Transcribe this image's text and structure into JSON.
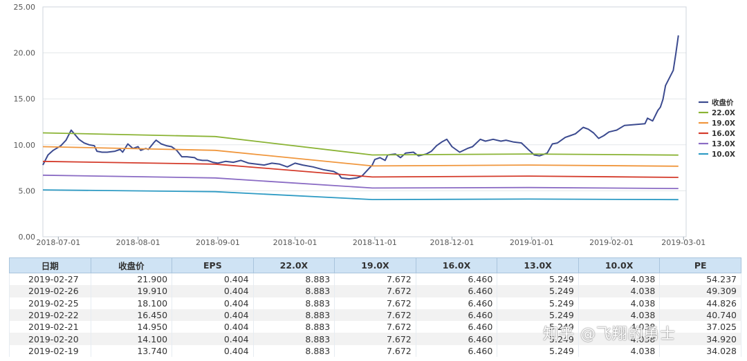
{
  "chart_data": {
    "type": "line",
    "title": "",
    "xlabel": "",
    "ylabel": "",
    "ylim": [
      0,
      25
    ],
    "yticks": [
      "0.00",
      "5.00",
      "10.00",
      "15.00",
      "20.00",
      "25.00"
    ],
    "x_range": [
      "2018-06-25",
      "2019-03-02"
    ],
    "xticks": [
      "2018-07-01",
      "2018-08-01",
      "2018-09-01",
      "2018-10-01",
      "2018-11-01",
      "2018-12-01",
      "2019-01-01",
      "2019-02-01",
      "2019-03-01"
    ],
    "grid": true,
    "legend_position": "right",
    "series": [
      {
        "name": "收盘价",
        "color": "#3b4a8f",
        "points": [
          [
            "2018-06-25",
            7.8
          ],
          [
            "2018-06-27",
            8.9
          ],
          [
            "2018-06-29",
            9.4
          ],
          [
            "2018-07-02",
            9.9
          ],
          [
            "2018-07-04",
            10.5
          ],
          [
            "2018-07-06",
            11.6
          ],
          [
            "2018-07-09",
            10.6
          ],
          [
            "2018-07-11",
            10.2
          ],
          [
            "2018-07-13",
            10.0
          ],
          [
            "2018-07-15",
            9.9
          ],
          [
            "2018-07-16",
            9.3
          ],
          [
            "2018-07-18",
            9.2
          ],
          [
            "2018-07-20",
            9.2
          ],
          [
            "2018-07-23",
            9.3
          ],
          [
            "2018-07-25",
            9.5
          ],
          [
            "2018-07-26",
            9.2
          ],
          [
            "2018-07-28",
            10.1
          ],
          [
            "2018-07-30",
            9.6
          ],
          [
            "2018-08-01",
            9.8
          ],
          [
            "2018-08-02",
            9.4
          ],
          [
            "2018-08-04",
            9.6
          ],
          [
            "2018-08-05",
            9.5
          ],
          [
            "2018-08-07",
            10.2
          ],
          [
            "2018-08-08",
            10.5
          ],
          [
            "2018-08-10",
            10.1
          ],
          [
            "2018-08-12",
            9.9
          ],
          [
            "2018-08-14",
            9.8
          ],
          [
            "2018-08-16",
            9.4
          ],
          [
            "2018-08-18",
            8.7
          ],
          [
            "2018-08-20",
            8.7
          ],
          [
            "2018-08-23",
            8.6
          ],
          [
            "2018-08-24",
            8.4
          ],
          [
            "2018-08-26",
            8.3
          ],
          [
            "2018-08-28",
            8.3
          ],
          [
            "2018-08-30",
            8.1
          ],
          [
            "2018-09-01",
            8.0
          ],
          [
            "2018-09-04",
            8.2
          ],
          [
            "2018-09-07",
            8.1
          ],
          [
            "2018-09-10",
            8.3
          ],
          [
            "2018-09-13",
            8.0
          ],
          [
            "2018-09-16",
            7.9
          ],
          [
            "2018-09-19",
            7.8
          ],
          [
            "2018-09-22",
            8.0
          ],
          [
            "2018-09-25",
            7.9
          ],
          [
            "2018-09-28",
            7.6
          ],
          [
            "2018-10-01",
            8.0
          ],
          [
            "2018-10-04",
            7.8
          ],
          [
            "2018-10-08",
            7.6
          ],
          [
            "2018-10-12",
            7.3
          ],
          [
            "2018-10-16",
            7.1
          ],
          [
            "2018-10-18",
            6.8
          ],
          [
            "2018-10-19",
            6.4
          ],
          [
            "2018-10-22",
            6.3
          ],
          [
            "2018-10-25",
            6.4
          ],
          [
            "2018-10-27",
            6.6
          ],
          [
            "2018-10-29",
            7.2
          ],
          [
            "2018-10-31",
            7.8
          ],
          [
            "2018-11-01",
            8.4
          ],
          [
            "2018-11-03",
            8.6
          ],
          [
            "2018-11-05",
            8.3
          ],
          [
            "2018-11-06",
            8.9
          ],
          [
            "2018-11-09",
            9.0
          ],
          [
            "2018-11-11",
            8.6
          ],
          [
            "2018-11-13",
            9.1
          ],
          [
            "2018-11-16",
            9.2
          ],
          [
            "2018-11-18",
            8.8
          ],
          [
            "2018-11-21",
            9.0
          ],
          [
            "2018-11-23",
            9.3
          ],
          [
            "2018-11-25",
            9.9
          ],
          [
            "2018-11-27",
            10.3
          ],
          [
            "2018-11-29",
            10.6
          ],
          [
            "2018-12-01",
            9.8
          ],
          [
            "2018-12-04",
            9.2
          ],
          [
            "2018-12-07",
            9.6
          ],
          [
            "2018-12-09",
            9.8
          ],
          [
            "2018-12-12",
            10.6
          ],
          [
            "2018-12-14",
            10.4
          ],
          [
            "2018-12-17",
            10.6
          ],
          [
            "2018-12-20",
            10.4
          ],
          [
            "2018-12-22",
            10.5
          ],
          [
            "2018-12-25",
            10.3
          ],
          [
            "2018-12-28",
            10.2
          ],
          [
            "2018-12-31",
            9.4
          ],
          [
            "2019-01-02",
            8.9
          ],
          [
            "2019-01-04",
            8.8
          ],
          [
            "2019-01-07",
            9.1
          ],
          [
            "2019-01-09",
            10.1
          ],
          [
            "2019-01-11",
            10.2
          ],
          [
            "2019-01-14",
            10.8
          ],
          [
            "2019-01-16",
            11.0
          ],
          [
            "2019-01-18",
            11.2
          ],
          [
            "2019-01-21",
            11.9
          ],
          [
            "2019-01-23",
            11.7
          ],
          [
            "2019-01-25",
            11.3
          ],
          [
            "2019-01-27",
            10.7
          ],
          [
            "2019-01-29",
            11.0
          ],
          [
            "2019-01-31",
            11.4
          ],
          [
            "2019-02-03",
            11.6
          ],
          [
            "2019-02-06",
            12.1
          ],
          [
            "2019-02-10",
            12.2
          ],
          [
            "2019-02-14",
            12.3
          ],
          [
            "2019-02-15",
            12.9
          ],
          [
            "2019-02-17",
            12.6
          ],
          [
            "2019-02-19",
            13.74
          ],
          [
            "2019-02-20",
            14.1
          ],
          [
            "2019-02-21",
            14.95
          ],
          [
            "2019-02-22",
            16.45
          ],
          [
            "2019-02-25",
            18.1
          ],
          [
            "2019-02-26",
            19.91
          ],
          [
            "2019-02-27",
            21.9
          ]
        ]
      },
      {
        "name": "22.0X",
        "color": "#8ab334",
        "points": [
          [
            "2018-06-25",
            11.3
          ],
          [
            "2018-08-31",
            10.9
          ],
          [
            "2018-10-31",
            8.9
          ],
          [
            "2018-12-31",
            9.0
          ],
          [
            "2019-02-27",
            8.883
          ]
        ]
      },
      {
        "name": "19.0X",
        "color": "#f0963c",
        "points": [
          [
            "2018-06-25",
            9.8
          ],
          [
            "2018-08-31",
            9.4
          ],
          [
            "2018-10-31",
            7.7
          ],
          [
            "2018-12-31",
            7.8
          ],
          [
            "2019-02-27",
            7.672
          ]
        ]
      },
      {
        "name": "16.0X",
        "color": "#d43a2a",
        "points": [
          [
            "2018-06-25",
            8.2
          ],
          [
            "2018-08-31",
            7.9
          ],
          [
            "2018-10-31",
            6.5
          ],
          [
            "2018-12-31",
            6.6
          ],
          [
            "2019-02-27",
            6.46
          ]
        ]
      },
      {
        "name": "13.0X",
        "color": "#8a6bc4",
        "points": [
          [
            "2018-06-25",
            6.7
          ],
          [
            "2018-08-31",
            6.4
          ],
          [
            "2018-10-31",
            5.3
          ],
          [
            "2018-12-31",
            5.35
          ],
          [
            "2019-02-27",
            5.249
          ]
        ]
      },
      {
        "name": "10.0X",
        "color": "#2e9bc4",
        "points": [
          [
            "2018-06-25",
            5.1
          ],
          [
            "2018-08-31",
            4.9
          ],
          [
            "2018-10-31",
            4.05
          ],
          [
            "2018-12-31",
            4.1
          ],
          [
            "2019-02-27",
            4.038
          ]
        ]
      }
    ]
  },
  "table": {
    "headers": [
      "日期",
      "收盘价",
      "EPS",
      "22.0X",
      "19.0X",
      "16.0X",
      "13.0X",
      "10.0X",
      "PE"
    ],
    "rows": [
      [
        "2019-02-27",
        "21.900",
        "0.404",
        "8.883",
        "7.672",
        "6.460",
        "5.249",
        "4.038",
        "54.237"
      ],
      [
        "2019-02-26",
        "19.910",
        "0.404",
        "8.883",
        "7.672",
        "6.460",
        "5.249",
        "4.038",
        "49.309"
      ],
      [
        "2019-02-25",
        "18.100",
        "0.404",
        "8.883",
        "7.672",
        "6.460",
        "5.249",
        "4.038",
        "44.826"
      ],
      [
        "2019-02-22",
        "16.450",
        "0.404",
        "8.883",
        "7.672",
        "6.460",
        "5.249",
        "4.038",
        "40.740"
      ],
      [
        "2019-02-21",
        "14.950",
        "0.404",
        "8.883",
        "7.672",
        "6.460",
        "5.249",
        "4.038",
        "37.025"
      ],
      [
        "2019-02-20",
        "14.100",
        "0.404",
        "8.883",
        "7.672",
        "6.460",
        "5.249",
        "4.038",
        "34.920"
      ],
      [
        "2019-02-19",
        "13.740",
        "0.404",
        "8.883",
        "7.672",
        "6.460",
        "5.249",
        "4.038",
        "34.028"
      ]
    ]
  },
  "watermark": "知乎 @飞翔的勇士"
}
